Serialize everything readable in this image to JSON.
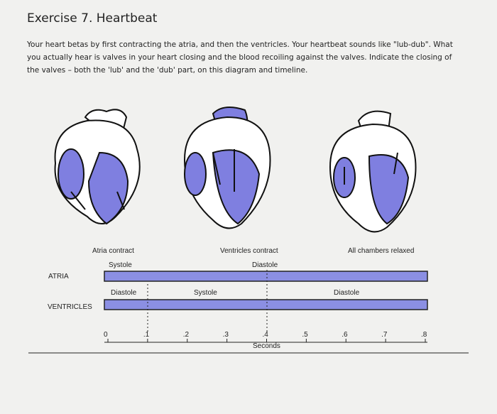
{
  "header": {
    "title": "Exercise 7. Heartbeat"
  },
  "instructions": "Your heart betas by first contracting the atria, and then the ventricles. Your heartbeat sounds like \"lub-dub\". What you actually hear is valves in your heart closing and the blood recoiling against the valves. Indicate the closing of the valves – both the 'lub' and the 'dub' part, on this diagram and timeline.",
  "diagrams": [
    {
      "caption": "Atria contract"
    },
    {
      "caption": "Ventricles contract"
    },
    {
      "caption": "All chambers relaxed"
    }
  ],
  "timeline": {
    "atria": {
      "label": "ATRIA",
      "phases": [
        "Systole",
        "Diastole"
      ]
    },
    "ventricles": {
      "label": "VENTRICLES",
      "phases": [
        "Diastole",
        "Systole",
        "Diastole"
      ]
    },
    "ticks": [
      "0",
      ".1",
      ".2",
      ".3",
      ".4",
      ".5",
      ".6",
      ".7",
      ".8"
    ],
    "axis_label": "Seconds"
  }
}
